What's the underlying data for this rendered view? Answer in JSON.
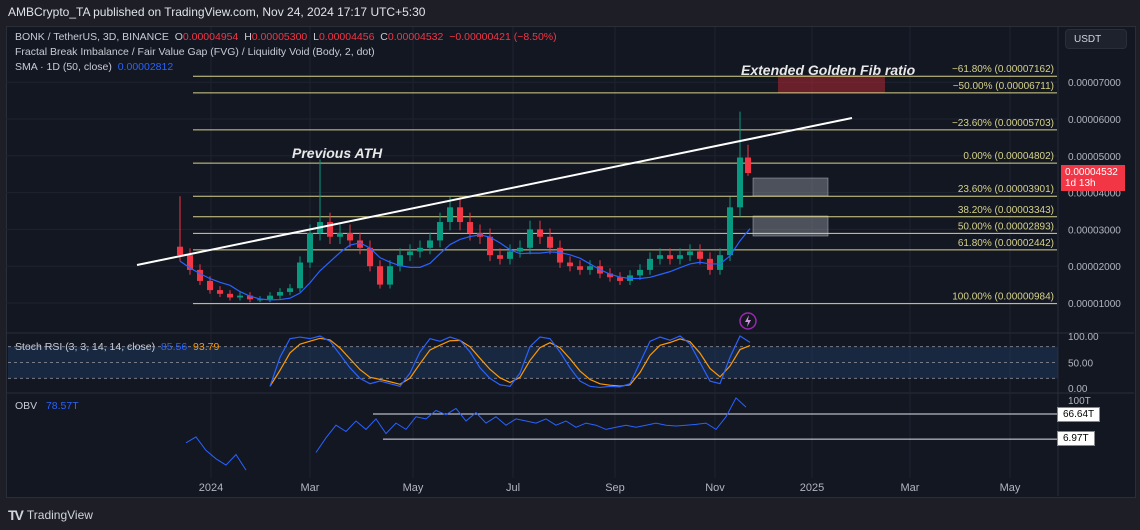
{
  "header": {
    "published": "AMBCrypto_TA published on TradingView.com, Nov 24, 2024 17:17 UTC+5:30"
  },
  "legend": {
    "symbol": "BONK / TetherUS, 3D, BINANCE",
    "o_label": "O",
    "o": "0.00004954",
    "h_label": "H",
    "h": "0.00005300",
    "l_label": "L",
    "l": "0.00004456",
    "c_label": "C",
    "c": "0.00004532",
    "change": "−0.00000421 (−8.50%)",
    "fvg": "Fractal Break Imbalance / Fair Value Gap (FVG) / Liquidity Void (Body, 2, dot)",
    "sma": "SMA · 1D (50, close)",
    "sma_value": "0.00002812",
    "stoch": "Stoch RSI (3, 3, 14, 14, close)",
    "stoch_k": "85.56",
    "stoch_d": "93.79",
    "obv": "OBV",
    "obv_value": "78.57T"
  },
  "currency": "USDT",
  "last_price": {
    "value": "0.00004532",
    "countdown": "1d 13h"
  },
  "annotations": {
    "previous_ath": "Previous ATH",
    "extended": "Extended Golden Fib ratio"
  },
  "obv_levels": [
    "66.64T",
    "6.97T"
  ],
  "brand": "TradingView",
  "colors": {
    "up": "#089981",
    "down": "#f23645",
    "sma": "#2962ff",
    "fib": "#d6d28a",
    "k": "#2962ff",
    "d": "#ff9800"
  },
  "chart_data": {
    "type": "candlestick",
    "price_unit": "1e-5 USDT",
    "y_ticks": [
      "0.00007000",
      "0.00006000",
      "0.00005000",
      "0.00004000",
      "0.00003000",
      "0.00002000",
      "0.00001000"
    ],
    "y_tick_values": [
      7,
      6,
      5,
      4,
      3,
      2,
      1
    ],
    "x_ticks": [
      "2024",
      "Mar",
      "May",
      "Jul",
      "Sep",
      "Nov",
      "2025",
      "Mar",
      "May"
    ],
    "closes": [
      2.3,
      1.9,
      1.6,
      1.35,
      1.25,
      1.15,
      1.2,
      1.1,
      1.1,
      1.2,
      1.3,
      1.4,
      2.1,
      2.9,
      3.2,
      2.8,
      2.9,
      2.7,
      2.5,
      2.0,
      1.5,
      2.0,
      2.3,
      2.4,
      2.5,
      2.7,
      3.2,
      3.6,
      3.2,
      2.9,
      2.8,
      2.3,
      2.2,
      2.4,
      2.5,
      3.0,
      2.8,
      2.5,
      2.1,
      2.0,
      1.9,
      2.0,
      1.8,
      1.7,
      1.6,
      1.75,
      1.9,
      2.2,
      2.3,
      2.2,
      2.3,
      2.4,
      2.2,
      1.9,
      2.3,
      3.6,
      4.954,
      4.532
    ],
    "fib_levels": [
      {
        "label": "−61.80% (0.00007162)",
        "price": 7.162
      },
      {
        "label": "−50.00% (0.00006711)",
        "price": 6.711
      },
      {
        "label": "−23.60% (0.00005703)",
        "price": 5.703
      },
      {
        "label": "0.00% (0.00004802)",
        "price": 4.802
      },
      {
        "label": "23.60% (0.00003901)",
        "price": 3.901
      },
      {
        "label": "38.20% (0.00003343)",
        "price": 3.343
      },
      {
        "label": "50.00% (0.00002893)",
        "price": 2.893
      },
      {
        "label": "61.80% (0.00002442)",
        "price": 2.442
      },
      {
        "label": "100.00% (0.00000984)",
        "price": 0.984
      }
    ],
    "stoch_ticks": [
      "100.00",
      "50.00",
      "0.00"
    ],
    "stoch_k": [
      5,
      60,
      95,
      98,
      95,
      100,
      90,
      65,
      40,
      20,
      10,
      15,
      10,
      5,
      30,
      70,
      95,
      90,
      98,
      92,
      70,
      40,
      20,
      8,
      5,
      30,
      80,
      98,
      95,
      70,
      40,
      15,
      5,
      3,
      5,
      4,
      10,
      50,
      90,
      98,
      92,
      100,
      85,
      50,
      15,
      10,
      60,
      100,
      88
    ],
    "obv_tick": "100T",
    "obv": [
      -2,
      12,
      -20,
      -40,
      -55,
      -30,
      -67,
      null,
      null,
      null,
      null,
      null,
      null,
      -25,
      10,
      40,
      25,
      50,
      30,
      55,
      20,
      45,
      30,
      60,
      55,
      75,
      65,
      80,
      50,
      70,
      45,
      60,
      40,
      55,
      50,
      45,
      55,
      40,
      50,
      35,
      45,
      40,
      30,
      35,
      40,
      35,
      40,
      45,
      40,
      38,
      40,
      42,
      45,
      30,
      60,
      105,
      83
    ]
  }
}
